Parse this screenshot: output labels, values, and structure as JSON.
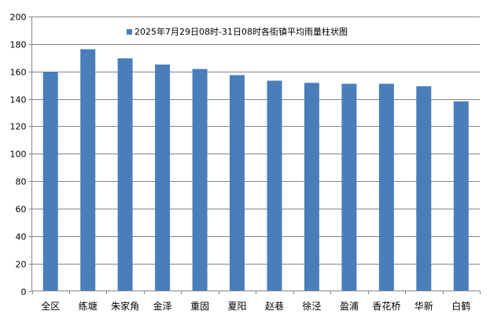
{
  "chart_data": {
    "type": "bar",
    "legend": {
      "label": "2025年7月29日08时-31日08时各街镇平均雨量柱状图",
      "placement": "top-center"
    },
    "categories": [
      "全区",
      "练塘",
      "朱家角",
      "金泽",
      "重固",
      "夏阳",
      "赵巷",
      "徐泾",
      "盈浦",
      "香花桥",
      "华新",
      "白鹤"
    ],
    "values": [
      159.8,
      176.2,
      169.5,
      165.0,
      161.8,
      157.3,
      153.2,
      151.7,
      151.0,
      151.0,
      149.2,
      138.2
    ],
    "ylim": [
      0,
      200
    ],
    "y_ticks": [
      "0",
      "20",
      "40",
      "60",
      "80",
      "100",
      "120",
      "140",
      "160",
      "180",
      "200"
    ],
    "grid": true,
    "colors": {
      "bar": "#4a7ebb",
      "grid": "#868686",
      "axis": "#868686"
    }
  }
}
